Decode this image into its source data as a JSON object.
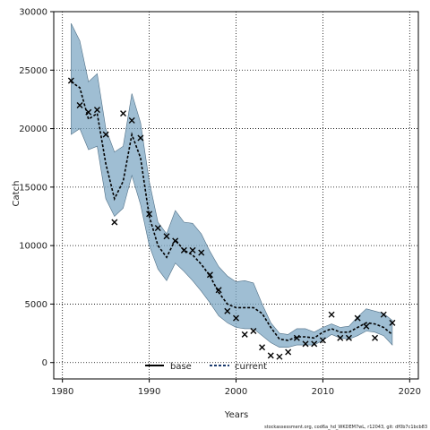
{
  "chart_data": {
    "type": "line",
    "xlabel": "Years",
    "ylabel": "Catch",
    "xlim": [
      1979,
      2021
    ],
    "ylim": [
      -1400,
      30000
    ],
    "xticks": [
      1980,
      1990,
      2000,
      2010,
      2020
    ],
    "yticks": [
      0,
      5000,
      10000,
      15000,
      20000,
      25000,
      30000
    ],
    "grid": true,
    "legend": {
      "placement": "bottom-center",
      "entries": [
        {
          "label": "base",
          "style": "solid",
          "color": "#000000"
        },
        {
          "label": "current",
          "style": "dashed",
          "color": "#1a3a6e"
        }
      ]
    },
    "series": [
      {
        "name": "base",
        "x": [],
        "values": []
      },
      {
        "name": "current",
        "x": [
          1981,
          1982,
          1983,
          1984,
          1985,
          1986,
          1987,
          1988,
          1989,
          1990,
          1991,
          1992,
          1993,
          1994,
          1995,
          1996,
          1997,
          1998,
          1999,
          2000,
          2001,
          2002,
          2003,
          2004,
          2005,
          2006,
          2007,
          2008,
          2009,
          2010,
          2011,
          2012,
          2013,
          2014,
          2015,
          2016,
          2017,
          2018
        ],
        "values": [
          24000,
          23500,
          20800,
          21300,
          17000,
          14000,
          15500,
          19500,
          17500,
          12500,
          10000,
          9000,
          10500,
          9600,
          9200,
          8400,
          7400,
          6000,
          5000,
          4700,
          4700,
          4700,
          4200,
          3000,
          2000,
          1900,
          2200,
          2200,
          2100,
          2600,
          2900,
          2600,
          2600,
          3000,
          3400,
          3300,
          3000,
          2400
        ],
        "ci_upper": [
          29000,
          27500,
          24000,
          24700,
          20000,
          18000,
          18500,
          23000,
          20500,
          15500,
          12000,
          11000,
          13000,
          12000,
          11900,
          11000,
          9500,
          8200,
          7400,
          6900,
          7000,
          6800,
          5000,
          3400,
          2500,
          2400,
          2900,
          2900,
          2600,
          3000,
          3300,
          3000,
          3100,
          3900,
          4600,
          4400,
          4200,
          3600
        ],
        "ci_lower": [
          19500,
          20000,
          18200,
          18500,
          14000,
          12500,
          13200,
          16000,
          13500,
          10000,
          8000,
          7000,
          8500,
          7800,
          7000,
          6100,
          5100,
          4000,
          3400,
          3000,
          2900,
          2900,
          2300,
          1700,
          1300,
          1300,
          1500,
          1500,
          1500,
          1900,
          2400,
          2100,
          2000,
          2300,
          2700,
          2600,
          2300,
          1500
        ]
      }
    ],
    "observed": {
      "marker": "x",
      "x": [
        1981,
        1982,
        1983,
        1984,
        1985,
        1986,
        1987,
        1988,
        1989,
        1990,
        1991,
        1992,
        1993,
        1994,
        1995,
        1996,
        1997,
        1998,
        1999,
        2000,
        2001,
        2002,
        2003,
        2004,
        2005,
        2006,
        2007,
        2008,
        2009,
        2010,
        2011,
        2012,
        2013,
        2014,
        2015,
        2016,
        2017,
        2018
      ],
      "values": [
        24100,
        22000,
        21400,
        21600,
        19500,
        12000,
        21300,
        20700,
        19200,
        12700,
        11500,
        10800,
        10400,
        9600,
        9600,
        9400,
        7500,
        6200,
        4400,
        3800,
        2400,
        2700,
        1300,
        600,
        500,
        900,
        2100,
        1600,
        1600,
        1900,
        4100,
        2100,
        2100,
        3800,
        3100,
        2100,
        4100,
        3400
      ]
    },
    "band_color": "#7fa8c4",
    "band_edge_color": "#4f6f86"
  },
  "footer": "stockassessment.org, cod6a_hd_WKDEM7wL, r12043, git: df0b7c1bcb83"
}
